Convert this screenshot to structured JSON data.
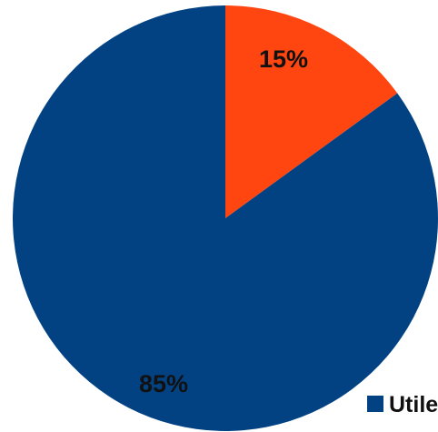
{
  "chart_data": {
    "type": "pie",
    "slices": [
      {
        "value": 15,
        "label": "15%",
        "color": "#FF4510"
      },
      {
        "value": 85,
        "label": "85%",
        "color": "#024283"
      }
    ],
    "legend": {
      "placement": "bottom-right",
      "entries": [
        {
          "label": "Utile",
          "color": "#024283"
        }
      ]
    }
  }
}
